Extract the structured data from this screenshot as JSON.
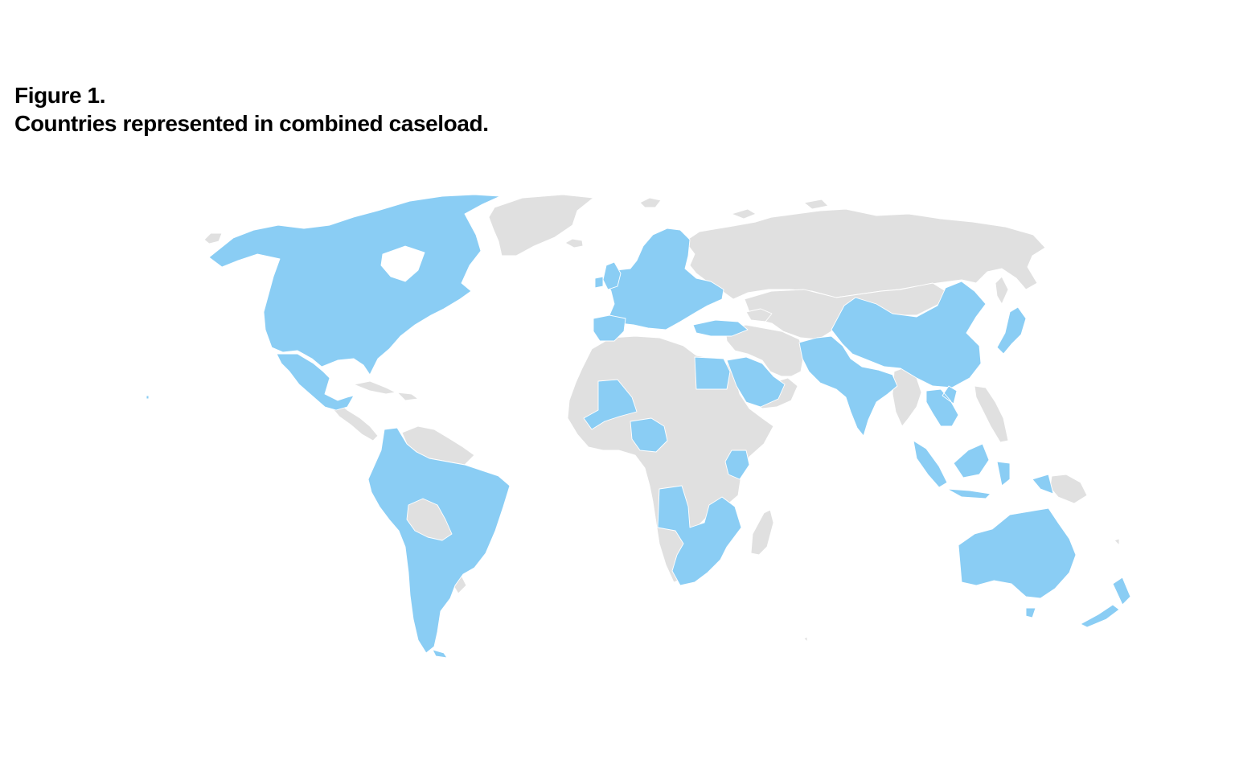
{
  "figure": {
    "label": "Figure 1.",
    "caption": "Countries represented in combined caseload."
  },
  "legend_colors": {
    "represented": "#8acdf4",
    "not_represented": "#e0e0e0"
  }
}
